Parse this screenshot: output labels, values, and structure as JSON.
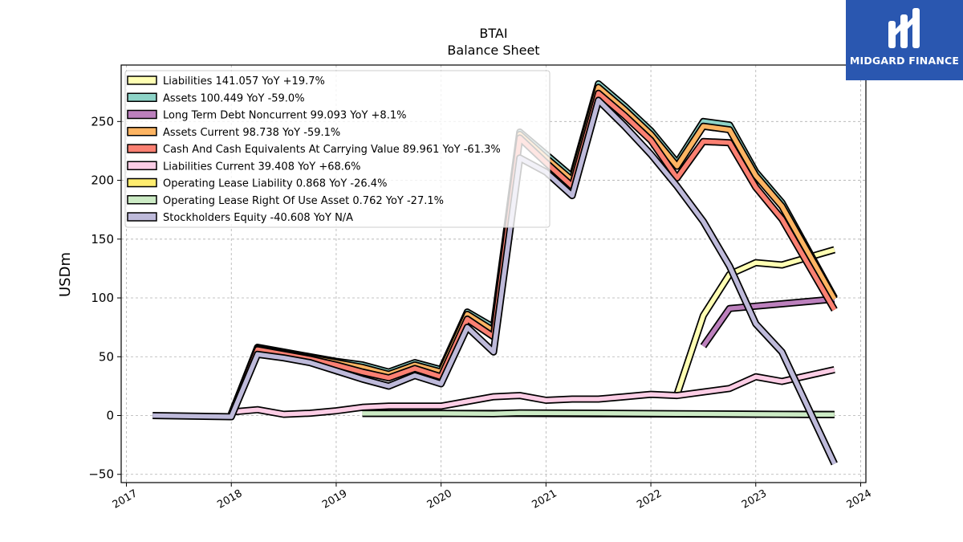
{
  "logo": {
    "text": "MIDGARD FINANCE",
    "background": "#2a57b0"
  },
  "chart_data": {
    "type": "line",
    "title": "BTAI",
    "subtitle": "Balance  Sheet",
    "ylabel": "USDm",
    "xlabel": "",
    "xlim": [
      2016.95,
      2024.05
    ],
    "ylim": [
      -57,
      298
    ],
    "xticks": [
      2017,
      2018,
      2019,
      2020,
      2021,
      2022,
      2023,
      2024
    ],
    "yticks": [
      -50,
      0,
      50,
      100,
      150,
      200,
      250
    ],
    "grid": true,
    "legend_position": "top-left",
    "series": [
      {
        "name": "Liabilities  141.057 YoY +19.7%",
        "color": "#ffffb3",
        "x": [
          2022.25,
          2022.5,
          2022.75,
          2023.0,
          2023.25,
          2023.75
        ],
        "y": [
          18,
          85,
          120,
          130,
          128,
          141
        ]
      },
      {
        "name": "Assets  100.449 YoY -59.0%",
        "color": "#8dd3c7",
        "x": [
          2018.0,
          2018.25,
          2018.5,
          2018.75,
          2019.0,
          2019.25,
          2019.5,
          2019.75,
          2020.0,
          2020.25,
          2020.5,
          2020.75,
          2021.0,
          2021.25,
          2021.5,
          2021.75,
          2022.0,
          2022.25,
          2022.5,
          2022.75,
          2023.0,
          2023.25,
          2023.75
        ],
        "y": [
          1,
          58,
          54,
          50,
          46,
          43,
          37,
          45,
          39,
          88,
          75,
          241,
          222,
          203,
          282,
          263,
          242,
          215,
          250,
          247,
          207,
          181,
          100
        ]
      },
      {
        "name": "Long Term Debt Noncurrent  99.093 YoY +8.1%",
        "color": "#bc80bd",
        "x": [
          2022.5,
          2022.75,
          2023.0,
          2023.25,
          2023.75
        ],
        "y": [
          59,
          91,
          93,
          95,
          99
        ]
      },
      {
        "name": "Assets Current  98.738 YoY -59.1%",
        "color": "#fdb462",
        "x": [
          2018.0,
          2018.25,
          2018.5,
          2018.75,
          2019.0,
          2019.25,
          2019.5,
          2019.75,
          2020.0,
          2020.25,
          2020.5,
          2020.75,
          2021.0,
          2021.25,
          2021.5,
          2021.75,
          2022.0,
          2022.25,
          2022.5,
          2022.75,
          2023.0,
          2023.25,
          2023.75
        ],
        "y": [
          1,
          57,
          53,
          49,
          45,
          41,
          35,
          43,
          37,
          86,
          72,
          239,
          219,
          200,
          279,
          260,
          239,
          212,
          246,
          243,
          204,
          178,
          99
        ]
      },
      {
        "name": "Cash And Cash Equivalents At Carrying Value  89.961 YoY -61.3%",
        "color": "#fb8072",
        "x": [
          2018.0,
          2018.25,
          2018.5,
          2018.75,
          2019.0,
          2019.25,
          2019.5,
          2019.75,
          2020.0,
          2020.25,
          2020.5,
          2020.75,
          2021.0,
          2021.25,
          2021.5,
          2021.75,
          2022.0,
          2022.25,
          2022.5,
          2022.75,
          2023.0,
          2023.25,
          2023.75
        ],
        "y": [
          1,
          56,
          52,
          48,
          43,
          37,
          32,
          40,
          33,
          82,
          67,
          236,
          215,
          195,
          274,
          255,
          234,
          202,
          233,
          232,
          194,
          167,
          90
        ]
      },
      {
        "name": "Liabilities Current  39.408 YoY +68.6%",
        "color": "#fccde5",
        "x": [
          2018.0,
          2018.25,
          2018.5,
          2018.75,
          2019.0,
          2019.25,
          2019.5,
          2019.75,
          2020.0,
          2020.25,
          2020.5,
          2020.75,
          2021.0,
          2021.25,
          2021.5,
          2021.75,
          2022.0,
          2022.25,
          2022.5,
          2022.75,
          2023.0,
          2023.25,
          2023.5,
          2023.75
        ],
        "y": [
          3,
          5,
          1,
          2,
          4,
          7,
          8,
          8,
          8,
          12,
          16,
          17,
          13,
          14,
          14,
          16,
          18,
          17,
          20,
          23,
          33,
          29,
          34,
          39
        ]
      },
      {
        "name": "Operating Lease Liability  0.868 YoY -26.4%",
        "color": "#ffed6f",
        "x": [
          2019.25,
          2020.0,
          2020.75,
          2021.5,
          2022.25,
          2023.0,
          2023.75
        ],
        "y": [
          1.9,
          1.8,
          1.8,
          1.6,
          1.3,
          1.1,
          0.9
        ]
      },
      {
        "name": "Operating Lease Right Of Use Asset  0.762 YoY -27.1%",
        "color": "#ccebc5",
        "x": [
          2019.25,
          2020.0,
          2020.5,
          2020.75,
          2021.5,
          2022.25,
          2023.0,
          2023.75
        ],
        "y": [
          1.8,
          1.8,
          1.6,
          2.2,
          2.0,
          1.6,
          1.1,
          0.8
        ]
      },
      {
        "name": "Stockholders Equity  -40.608 YoY N/A",
        "color": "#bebada",
        "x": [
          2017.25,
          2018.0,
          2018.25,
          2018.5,
          2018.75,
          2019.0,
          2019.25,
          2019.5,
          2019.75,
          2020.0,
          2020.25,
          2020.5,
          2020.75,
          2021.0,
          2021.25,
          2021.5,
          2021.75,
          2022.0,
          2022.25,
          2022.5,
          2022.75,
          2023.0,
          2023.25,
          2023.75
        ],
        "y": [
          0,
          -1,
          52,
          49,
          45,
          38,
          31,
          25,
          34,
          27,
          75,
          54,
          219,
          207,
          187,
          268,
          246,
          222,
          195,
          165,
          127,
          78,
          54,
          -41
        ]
      }
    ]
  }
}
